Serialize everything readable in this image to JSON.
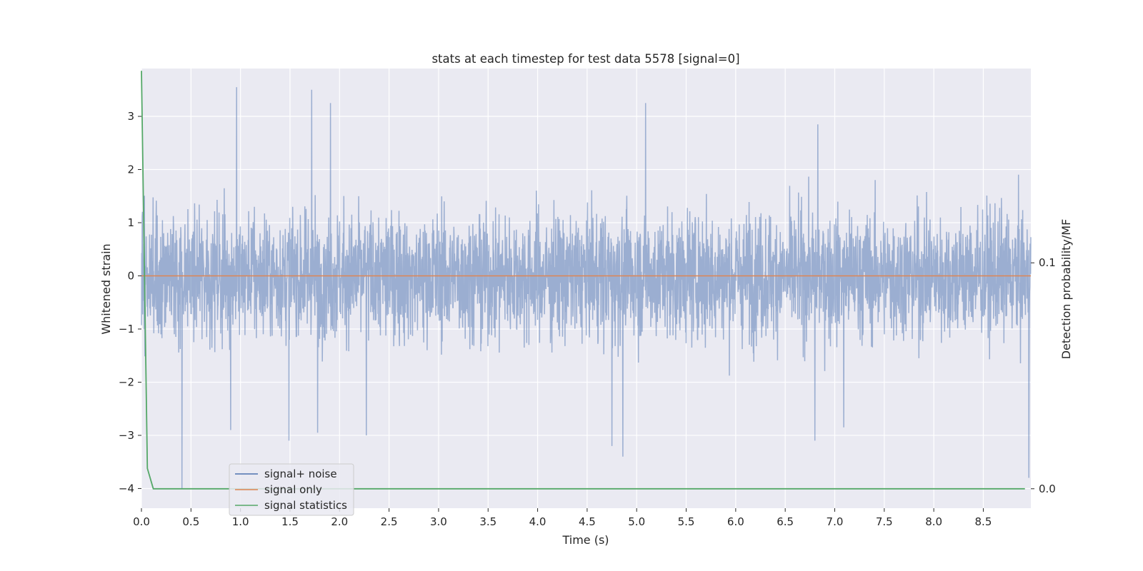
{
  "chart_data": {
    "type": "line",
    "title": "stats at each timestep for test data 5578 [signal=0]",
    "xlabel": "Time (s)",
    "ylabel": "Whitened strain",
    "ylabel_right": "Detection probability/MF",
    "xlim": [
      0.0,
      8.98
    ],
    "ylim": [
      -4.37,
      3.9
    ],
    "ylim_right": [
      -0.0086,
      0.186
    ],
    "x_ticks": [
      "0.0",
      "0.5",
      "1.0",
      "1.5",
      "2.0",
      "2.5",
      "3.0",
      "3.5",
      "4.0",
      "4.5",
      "5.0",
      "5.5",
      "6.0",
      "6.5",
      "7.0",
      "7.5",
      "8.0",
      "8.5"
    ],
    "y_ticks": [
      "3",
      "2",
      "1",
      "0",
      "−1",
      "−2",
      "−3",
      "−4"
    ],
    "y_ticks_right": [
      "0.1",
      "0.0"
    ],
    "grid": true,
    "legend_position": "lower-left",
    "series": [
      {
        "name": "signal+ noise",
        "axis": "left",
        "color": "#4c72b0",
        "style": "dense noise, amplitude about ±1.3 with spikes to ±3.5",
        "peaks": [
          {
            "x": 0.96,
            "y": 3.55
          },
          {
            "x": 1.72,
            "y": 3.5
          },
          {
            "x": 1.91,
            "y": 3.25
          },
          {
            "x": 5.09,
            "y": 3.25
          },
          {
            "x": 6.83,
            "y": 2.85
          },
          {
            "x": 0.41,
            "y": -4.0
          },
          {
            "x": 0.9,
            "y": -2.9
          },
          {
            "x": 1.49,
            "y": -3.1
          },
          {
            "x": 1.78,
            "y": -2.95
          },
          {
            "x": 2.27,
            "y": -3.0
          },
          {
            "x": 4.75,
            "y": -3.2
          },
          {
            "x": 4.86,
            "y": -3.4
          },
          {
            "x": 6.8,
            "y": -3.1
          },
          {
            "x": 7.09,
            "y": -2.85
          },
          {
            "x": 8.96,
            "y": -3.8
          }
        ]
      },
      {
        "name": "signal only",
        "axis": "left",
        "color": "#dd8452",
        "x": [
          0.0,
          8.98
        ],
        "y": [
          0.0,
          0.0
        ]
      },
      {
        "name": "signal statistics",
        "axis": "right",
        "color": "#55a868",
        "x": [
          0.0,
          0.06,
          0.12,
          0.25,
          1.0,
          2.0,
          3.0,
          4.0,
          5.0,
          6.0,
          7.0,
          8.0,
          8.92
        ],
        "y": [
          0.185,
          0.009,
          0.0,
          0.0,
          0.0,
          0.0,
          0.0,
          0.0,
          0.0,
          0.0,
          0.0,
          0.0,
          0.0
        ]
      }
    ]
  }
}
